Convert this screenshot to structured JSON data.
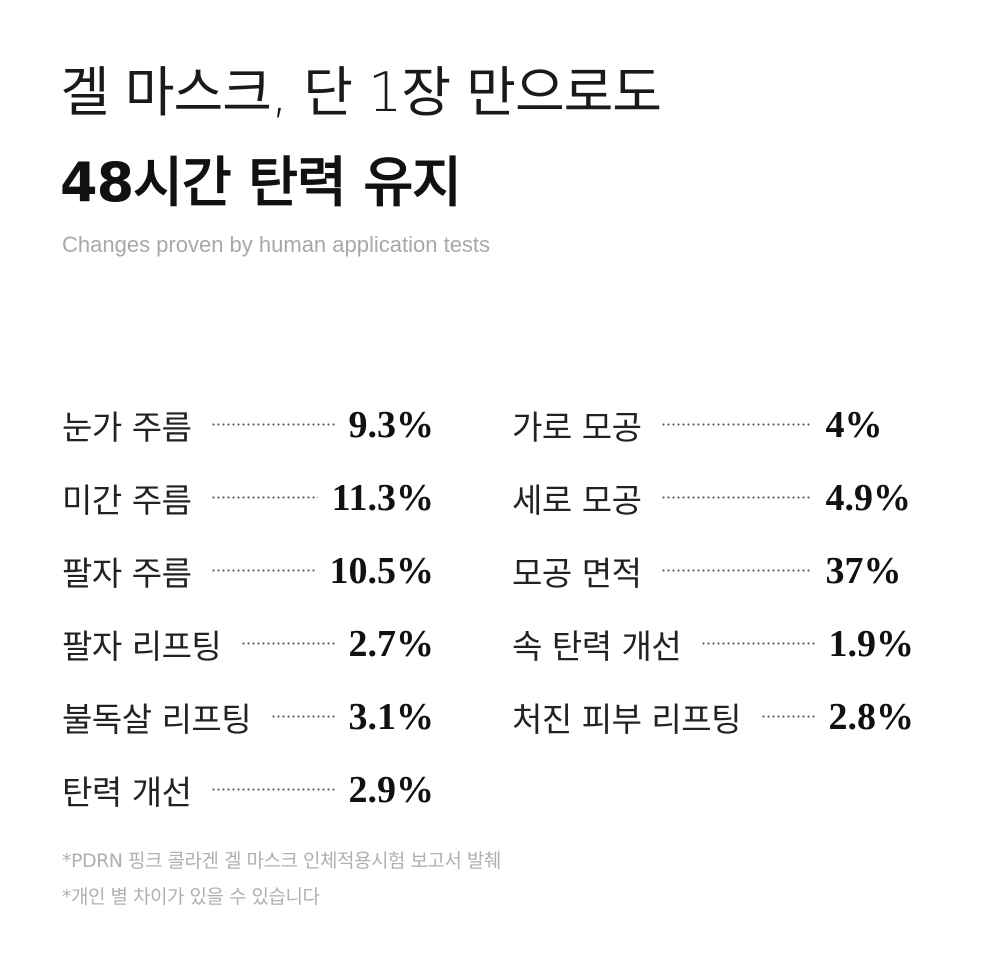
{
  "header": {
    "line1": "겔 마스크, 단 1장 만으로도",
    "line2": "48시간 탄력 유지",
    "subtitle": "Changes proven by human application tests"
  },
  "results": {
    "left": [
      {
        "label": "눈가 주름",
        "value": "9.3%"
      },
      {
        "label": "미간 주름",
        "value": "11.3%"
      },
      {
        "label": "팔자 주름",
        "value": "10.5%"
      },
      {
        "label": "팔자 리프팅",
        "value": "2.7%"
      },
      {
        "label": "불독살 리프팅",
        "value": "3.1%"
      },
      {
        "label": "탄력 개선",
        "value": "2.9%"
      }
    ],
    "right": [
      {
        "label": "가로 모공",
        "value": "4%"
      },
      {
        "label": "세로 모공",
        "value": "4.9%"
      },
      {
        "label": "모공 면적",
        "value": "37%"
      },
      {
        "label": "속 탄력 개선",
        "value": "1.9%"
      },
      {
        "label": "처진 피부 리프팅",
        "value": "2.8%"
      }
    ]
  },
  "footnotes": {
    "source": "*PDRN 핑크 콜라겐 겔 마스크 인체적용시험 보고서 발췌",
    "disclaimer": "*개인 별 차이가 있을 수 있습니다"
  }
}
